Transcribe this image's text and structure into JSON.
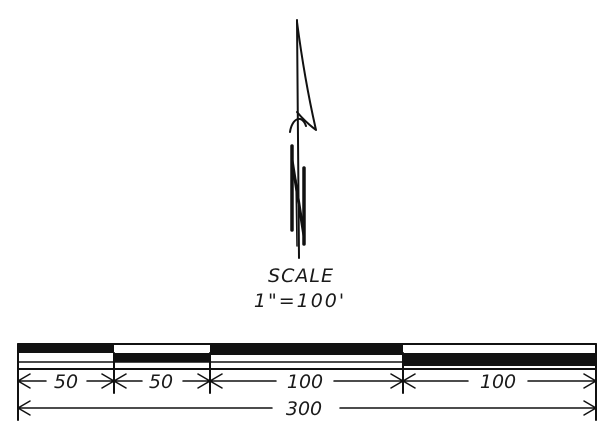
{
  "north_arrow": {
    "letter": "N",
    "icon": "north-arrow-icon"
  },
  "scale": {
    "title": "SCALE",
    "ratio": "1\"=100'"
  },
  "scale_bar": {
    "segments": [
      {
        "label": "50",
        "length_ft": 50
      },
      {
        "label": "50",
        "length_ft": 50
      },
      {
        "label": "100",
        "length_ft": 100
      },
      {
        "label": "100",
        "length_ft": 100
      }
    ],
    "total_label": "300",
    "total_ft": 300
  },
  "colors": {
    "ink": "#111111",
    "paper": "#ffffff"
  }
}
